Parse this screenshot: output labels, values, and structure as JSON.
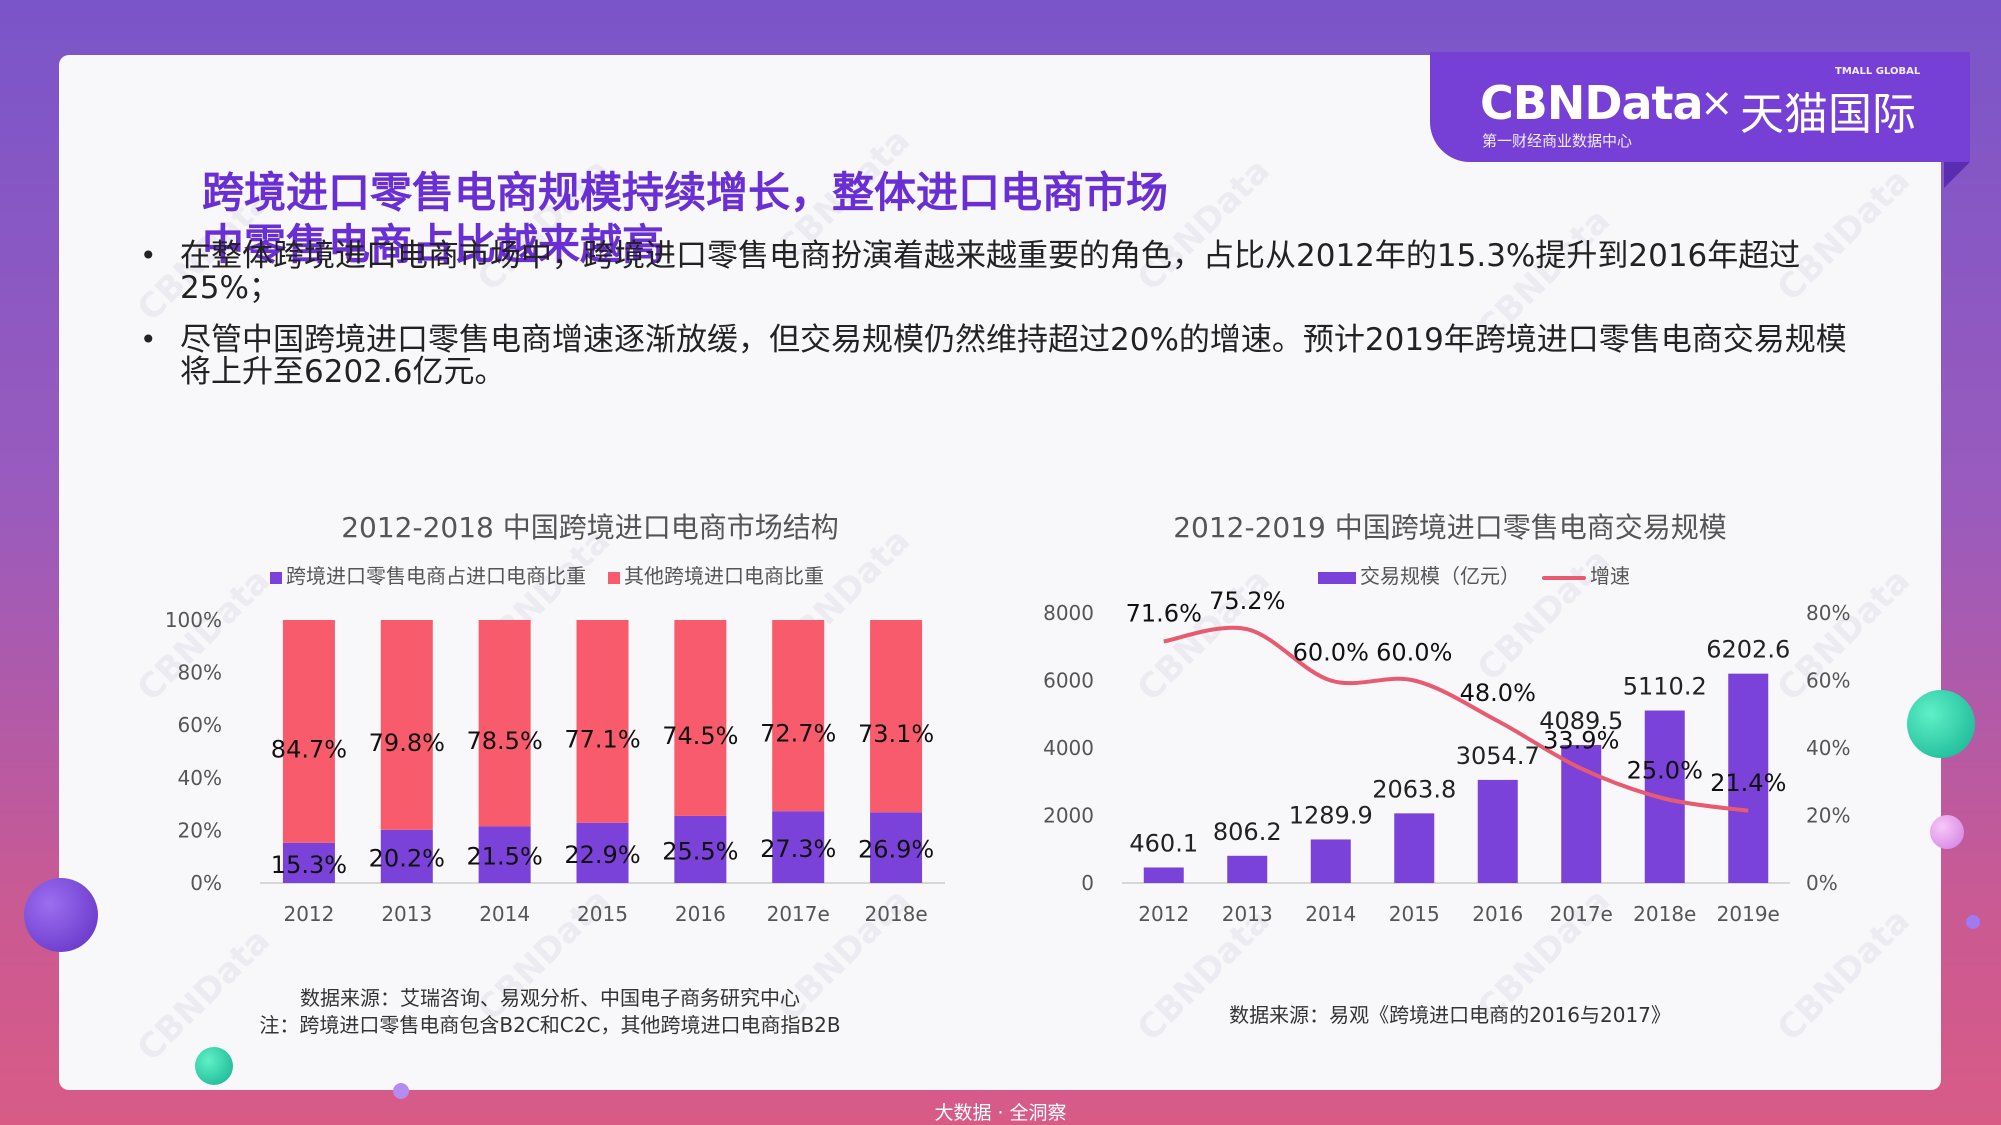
{
  "brand": {
    "logo": "CBNData",
    "times": "×",
    "partner": "天猫国际",
    "partner_en": "TMALL GLOBAL",
    "subtitle": "第一财经商业数据中心"
  },
  "title_lines": [
    "跨境进口零售电商规模持续增长，整体进口电商市场",
    "中零售电商占比越来越高"
  ],
  "bullets": [
    "在整体跨境进口电商市场中，跨境进口零售电商扮演着越来越重要的角色，占比从2012年的15.3%提升到2016年超过25%；",
    "尽管中国跨境进口零售电商增速逐渐放缓，但交易规模仍然维持超过20%的增速。预计2019年跨境进口零售电商交易规模将上升至6202.6亿元。"
  ],
  "watermark": "CBNData",
  "footer": "大数据 · 全洞察",
  "colors": {
    "purple": "#7a42d8",
    "red": "#f85c6c",
    "title": "#6a2fd4"
  },
  "chart_data": [
    {
      "type": "bar",
      "stacked": true,
      "title": "2012-2018 中国跨境进口电商市场结构",
      "categories": [
        "2012",
        "2013",
        "2014",
        "2015",
        "2016",
        "2017e",
        "2018e"
      ],
      "series": [
        {
          "name": "跨境进口零售电商占进口电商比重",
          "color": "#7a42d8",
          "values": [
            15.3,
            20.2,
            21.5,
            22.9,
            25.5,
            27.3,
            26.9
          ],
          "labels": [
            "15.3%",
            "20.2%",
            "21.5%",
            "22.9%",
            "25.5%",
            "27.3%",
            "26.9%"
          ]
        },
        {
          "name": "其他跨境进口电商比重",
          "color": "#f85c6c",
          "values": [
            84.7,
            79.8,
            78.5,
            77.1,
            74.5,
            72.7,
            73.1
          ],
          "labels": [
            "84.7%",
            "79.8%",
            "78.5%",
            "77.1%",
            "74.5%",
            "72.7%",
            "73.1%"
          ]
        }
      ],
      "ylim": [
        0,
        100
      ],
      "yticks": [
        "0%",
        "20%",
        "40%",
        "60%",
        "80%",
        "100%"
      ],
      "legend": "top",
      "source_lines": [
        "数据来源：艾瑞咨询、易观分析、中国电子商务研究中心",
        "注：跨境进口零售电商包含B2C和C2C，其他跨境进口电商指B2B"
      ]
    },
    {
      "type": "bar+line",
      "title": "2012-2019 中国跨境进口零售电商交易规模",
      "categories": [
        "2012",
        "2013",
        "2014",
        "2015",
        "2016",
        "2017e",
        "2018e",
        "2019e"
      ],
      "bar": {
        "name": "交易规模（亿元）",
        "color": "#7a42d8",
        "values": [
          460.1,
          806.2,
          1289.9,
          2063.8,
          3054.7,
          4089.5,
          5110.2,
          6202.6
        ],
        "labels": [
          "460.1",
          "806.2",
          "1289.9",
          "2063.8",
          "3054.7",
          "4089.5",
          "5110.2",
          "6202.6"
        ]
      },
      "line": {
        "name": "增速",
        "color": "#e85a70",
        "values": [
          71.6,
          75.2,
          60.0,
          60.0,
          48.0,
          33.9,
          25.0,
          21.4
        ],
        "labels": [
          "71.6%",
          "75.2%",
          "60.0%",
          "60.0%",
          "48.0%",
          "33.9%",
          "25.0%",
          "21.4%"
        ]
      },
      "ylim_left": [
        0,
        8000
      ],
      "yticks_left": [
        "0",
        "2000",
        "4000",
        "6000",
        "8000"
      ],
      "ylim_right": [
        0,
        80
      ],
      "yticks_right": [
        "0%",
        "20%",
        "40%",
        "60%",
        "80%"
      ],
      "legend": "top",
      "source_lines": [
        "数据来源：易观《跨境进口电商的2016与2017》"
      ]
    }
  ]
}
